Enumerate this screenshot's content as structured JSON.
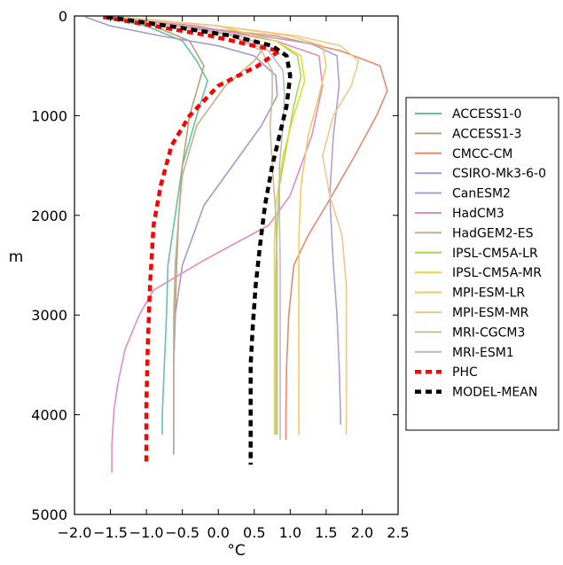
{
  "chart_data": {
    "type": "line",
    "title": "",
    "xlabel": "°C",
    "ylabel": "m",
    "xlim": [
      -2.0,
      2.5
    ],
    "ylim": [
      5000,
      0
    ],
    "y_inverted": true,
    "xticks": [
      -2.0,
      -1.5,
      -1.0,
      -0.5,
      0.0,
      0.5,
      1.0,
      1.5,
      2.0,
      2.5
    ],
    "xtick_labels": [
      "−2.0",
      "−1.5",
      "−1.0",
      "−0.5",
      "0.0",
      "0.5",
      "1.0",
      "1.5",
      "2.0",
      "2.5"
    ],
    "yticks": [
      0,
      1000,
      2000,
      3000,
      4000,
      5000
    ],
    "ytick_labels": [
      "0",
      "1000",
      "2000",
      "3000",
      "4000",
      "5000"
    ],
    "grid": false,
    "legend_position": "right, outside plot",
    "series": [
      {
        "name": "ACCESS1-0",
        "color": "#66c2a5",
        "style": "solid",
        "points": [
          [
            -1.6,
            10
          ],
          [
            -1.0,
            100
          ],
          [
            -0.5,
            250
          ],
          [
            -0.3,
            450
          ],
          [
            -0.15,
            650
          ],
          [
            -0.3,
            1000
          ],
          [
            -0.5,
            1500
          ],
          [
            -0.6,
            2000
          ],
          [
            -0.7,
            2500
          ],
          [
            -0.72,
            3000
          ],
          [
            -0.75,
            3500
          ],
          [
            -0.78,
            4000
          ],
          [
            -0.78,
            4200
          ]
        ]
      },
      {
        "name": "ACCESS1-3",
        "color": "#b8a07e",
        "style": "solid",
        "points": [
          [
            -1.5,
            10
          ],
          [
            -0.9,
            100
          ],
          [
            -0.4,
            250
          ],
          [
            -0.2,
            500
          ],
          [
            -0.3,
            750
          ],
          [
            -0.4,
            1000
          ],
          [
            -0.5,
            1500
          ],
          [
            -0.55,
            2000
          ],
          [
            -0.58,
            2500
          ],
          [
            -0.6,
            3000
          ],
          [
            -0.62,
            3500
          ],
          [
            -0.62,
            4000
          ],
          [
            -0.62,
            4200
          ]
        ]
      },
      {
        "name": "CMCC-CM",
        "color": "#e8896f",
        "style": "solid",
        "points": [
          [
            -1.6,
            10
          ],
          [
            -0.5,
            100
          ],
          [
            0.8,
            200
          ],
          [
            1.7,
            350
          ],
          [
            2.25,
            500
          ],
          [
            2.35,
            750
          ],
          [
            2.2,
            1000
          ],
          [
            1.9,
            1400
          ],
          [
            1.5,
            1900
          ],
          [
            1.25,
            2200
          ],
          [
            1.05,
            2500
          ],
          [
            0.98,
            3000
          ],
          [
            0.95,
            3500
          ],
          [
            0.94,
            4000
          ],
          [
            0.94,
            4250
          ]
        ]
      },
      {
        "name": "CSIRO-Mk3-6-0",
        "color": "#a999c8",
        "style": "solid",
        "points": [
          [
            -1.85,
            10
          ],
          [
            -1.5,
            100
          ],
          [
            -0.8,
            200
          ],
          [
            0.0,
            300
          ],
          [
            0.5,
            400
          ],
          [
            0.8,
            600
          ],
          [
            0.82,
            800
          ],
          [
            0.6,
            1100
          ],
          [
            0.2,
            1500
          ],
          [
            -0.2,
            1900
          ],
          [
            -0.5,
            2500
          ],
          [
            -0.6,
            3000
          ],
          [
            -0.62,
            3500
          ],
          [
            -0.62,
            4000
          ],
          [
            -0.62,
            4400
          ]
        ]
      },
      {
        "name": "CanESM2",
        "color": "#b39ed6",
        "style": "solid",
        "points": [
          [
            -1.5,
            10
          ],
          [
            -0.5,
            100
          ],
          [
            0.6,
            200
          ],
          [
            1.3,
            280
          ],
          [
            1.65,
            400
          ],
          [
            1.68,
            700
          ],
          [
            1.6,
            1200
          ],
          [
            1.55,
            1800
          ],
          [
            1.6,
            2500
          ],
          [
            1.65,
            3000
          ],
          [
            1.68,
            3500
          ],
          [
            1.7,
            4000
          ],
          [
            1.7,
            4100
          ]
        ]
      },
      {
        "name": "HadCM3",
        "color": "#e38cc2",
        "style": "solid",
        "points": [
          [
            -1.6,
            10
          ],
          [
            -0.3,
            100
          ],
          [
            0.8,
            250
          ],
          [
            1.4,
            400
          ],
          [
            1.45,
            700
          ],
          [
            1.3,
            1200
          ],
          [
            1.0,
            1800
          ],
          [
            0.7,
            2100
          ],
          [
            -0.2,
            2450
          ],
          [
            -0.9,
            2750
          ],
          [
            -1.1,
            3000
          ],
          [
            -1.3,
            3350
          ],
          [
            -1.4,
            3700
          ],
          [
            -1.45,
            3950
          ],
          [
            -1.48,
            4300
          ],
          [
            -1.48,
            4580
          ]
        ]
      },
      {
        "name": "HadGEM2-ES",
        "color": "#c4b08c",
        "style": "solid",
        "points": [
          [
            -1.5,
            10
          ],
          [
            -0.5,
            100
          ],
          [
            0.3,
            200
          ],
          [
            0.65,
            300
          ],
          [
            0.5,
            450
          ],
          [
            0.1,
            700
          ],
          [
            -0.3,
            1100
          ],
          [
            -0.5,
            1600
          ],
          [
            -0.55,
            2000
          ],
          [
            -0.6,
            2500
          ],
          [
            -0.62,
            3000
          ],
          [
            -0.62,
            3500
          ],
          [
            -0.62,
            4000
          ],
          [
            -0.62,
            4200
          ]
        ]
      },
      {
        "name": "IPSL-CM5A-LR",
        "color": "#a6d854",
        "style": "solid",
        "points": [
          [
            -1.4,
            10
          ],
          [
            0.0,
            100
          ],
          [
            0.8,
            250
          ],
          [
            1.1,
            400
          ],
          [
            1.15,
            600
          ],
          [
            1.05,
            900
          ],
          [
            0.95,
            1300
          ],
          [
            0.85,
            1700
          ],
          [
            0.82,
            2100
          ],
          [
            0.8,
            2600
          ],
          [
            0.8,
            3000
          ],
          [
            0.8,
            3500
          ],
          [
            0.8,
            4000
          ],
          [
            0.8,
            4200
          ]
        ]
      },
      {
        "name": "IPSL-CM5A-MR",
        "color": "#e8d83a",
        "style": "solid",
        "points": [
          [
            -1.4,
            10
          ],
          [
            0.0,
            100
          ],
          [
            0.8,
            250
          ],
          [
            1.15,
            400
          ],
          [
            1.2,
            650
          ],
          [
            1.05,
            1000
          ],
          [
            0.9,
            1400
          ],
          [
            0.8,
            1900
          ],
          [
            0.78,
            2300
          ],
          [
            0.78,
            2800
          ],
          [
            0.78,
            3300
          ],
          [
            0.78,
            3800
          ],
          [
            0.78,
            4200
          ]
        ]
      },
      {
        "name": "MPI-ESM-LR",
        "color": "#f2cc5c",
        "style": "solid",
        "points": [
          [
            -1.4,
            10
          ],
          [
            0.0,
            100
          ],
          [
            1.0,
            200
          ],
          [
            1.45,
            300
          ],
          [
            1.5,
            500
          ],
          [
            1.4,
            800
          ],
          [
            1.25,
            1200
          ],
          [
            1.15,
            1700
          ],
          [
            1.12,
            2200
          ],
          [
            1.12,
            2700
          ],
          [
            1.12,
            3200
          ],
          [
            1.12,
            3700
          ],
          [
            1.12,
            4200
          ]
        ]
      },
      {
        "name": "MPI-ESM-MR",
        "color": "#eec98c",
        "style": "solid",
        "points": [
          [
            -1.4,
            10
          ],
          [
            0.0,
            100
          ],
          [
            1.1,
            200
          ],
          [
            1.7,
            300
          ],
          [
            1.95,
            450
          ],
          [
            1.85,
            700
          ],
          [
            1.6,
            1000
          ],
          [
            1.45,
            1400
          ],
          [
            1.55,
            1800
          ],
          [
            1.72,
            2200
          ],
          [
            1.78,
            2700
          ],
          [
            1.78,
            3300
          ],
          [
            1.78,
            3800
          ],
          [
            1.78,
            4200
          ]
        ]
      },
      {
        "name": "MRI-CGCM3",
        "color": "#cdbb9c",
        "style": "solid",
        "points": [
          [
            -1.6,
            10
          ],
          [
            -0.6,
            100
          ],
          [
            0.2,
            200
          ],
          [
            0.6,
            350
          ],
          [
            0.75,
            550
          ],
          [
            0.75,
            800
          ],
          [
            0.72,
            1100
          ],
          [
            0.75,
            1500
          ],
          [
            0.8,
            2000
          ],
          [
            0.82,
            2500
          ],
          [
            0.82,
            3000
          ],
          [
            0.82,
            3500
          ],
          [
            0.82,
            4000
          ],
          [
            0.82,
            4200
          ]
        ]
      },
      {
        "name": "MRI-ESM1",
        "color": "#bbbbbb",
        "style": "solid",
        "points": [
          [
            -1.6,
            10
          ],
          [
            -0.6,
            100
          ],
          [
            0.2,
            200
          ],
          [
            0.7,
            350
          ],
          [
            0.9,
            550
          ],
          [
            0.92,
            800
          ],
          [
            0.9,
            1100
          ],
          [
            0.85,
            1500
          ],
          [
            0.85,
            2000
          ],
          [
            0.86,
            2500
          ],
          [
            0.86,
            3000
          ],
          [
            0.86,
            3500
          ],
          [
            0.86,
            4000
          ],
          [
            0.86,
            4250
          ]
        ]
      },
      {
        "name": "PHC",
        "color": "#ff0000",
        "style": "dashed",
        "points": [
          [
            -1.6,
            10
          ],
          [
            -0.9,
            100
          ],
          [
            -0.1,
            200
          ],
          [
            0.5,
            300
          ],
          [
            0.85,
            350
          ],
          [
            0.55,
            500
          ],
          [
            0.0,
            700
          ],
          [
            -0.4,
            1000
          ],
          [
            -0.65,
            1300
          ],
          [
            -0.8,
            1700
          ],
          [
            -0.9,
            2100
          ],
          [
            -0.95,
            2700
          ],
          [
            -0.98,
            3300
          ],
          [
            -1.0,
            3900
          ],
          [
            -1.0,
            4500
          ]
        ]
      },
      {
        "name": "MODEL-MEAN",
        "color": "#000000",
        "style": "dashed",
        "points": [
          [
            -1.55,
            10
          ],
          [
            -0.7,
            100
          ],
          [
            0.2,
            200
          ],
          [
            0.75,
            300
          ],
          [
            0.95,
            400
          ],
          [
            1.0,
            600
          ],
          [
            0.95,
            900
          ],
          [
            0.85,
            1200
          ],
          [
            0.75,
            1500
          ],
          [
            0.65,
            1900
          ],
          [
            0.58,
            2300
          ],
          [
            0.52,
            2700
          ],
          [
            0.48,
            3100
          ],
          [
            0.45,
            3500
          ],
          [
            0.45,
            4000
          ],
          [
            0.45,
            4500
          ]
        ]
      }
    ]
  }
}
